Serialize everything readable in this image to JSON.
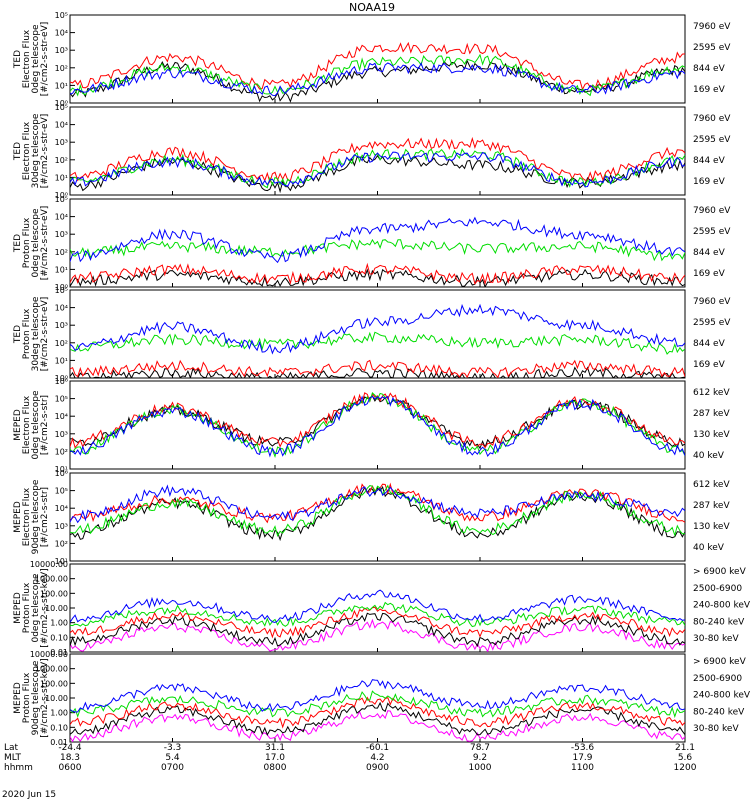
{
  "title": "NOAA19",
  "date": "2020 Jun 15",
  "colors": {
    "black": "#000000",
    "red": "#ff0000",
    "green": "#00dd00",
    "blue": "#0000ff",
    "magenta": "#ff00ff"
  },
  "x_rows": [
    {
      "label": "Lat",
      "values": [
        "-24.4",
        "-3.3",
        "31.1",
        "-60.1",
        "78.7",
        "-53.6",
        "21.1"
      ]
    },
    {
      "label": "MLT",
      "values": [
        "18.3",
        "5.4",
        "17.0",
        "4.2",
        "9.2",
        "17.9",
        "5.6"
      ]
    },
    {
      "label": "hhmm",
      "values": [
        "0600",
        "0700",
        "0800",
        "0900",
        "1000",
        "1100",
        "1200"
      ]
    }
  ],
  "chart_data": [
    {
      "type": "line",
      "scale": "log",
      "ylabel_lines": [
        "TED",
        "Electron Flux",
        "0deg telescope",
        "[#/cm2-s-str-eV]"
      ],
      "yticks": [
        "10⁰",
        "10¹",
        "10²",
        "10³",
        "10⁴",
        "10⁵"
      ],
      "ylim": [
        1,
        100000
      ],
      "legend": [
        {
          "label": "7960 eV",
          "color": "#000000"
        },
        {
          "label": "2595 eV",
          "color": "#ff0000"
        },
        {
          "label": "844 eV",
          "color": "#00dd00"
        },
        {
          "label": "169 eV",
          "color": "#0000ff"
        }
      ],
      "x": [
        "0600",
        "0700",
        "0800",
        "0900",
        "1000",
        "1100",
        "1200"
      ],
      "series": [
        {
          "name": "7960 eV",
          "values": [
            3,
            120,
            2,
            60,
            150,
            5,
            80
          ]
        },
        {
          "name": "2595 eV",
          "values": [
            10,
            400,
            10,
            1500,
            1200,
            10,
            400
          ]
        },
        {
          "name": "844 eV",
          "values": [
            5,
            100,
            5,
            200,
            300,
            5,
            100
          ]
        },
        {
          "name": "169 eV",
          "values": [
            5,
            50,
            5,
            100,
            100,
            5,
            50
          ]
        }
      ]
    },
    {
      "type": "line",
      "scale": "log",
      "ylabel_lines": [
        "TED",
        "Electron Flux",
        "30deg telescope",
        "[#/cm2-s-str-eV]"
      ],
      "yticks": [
        "10⁰",
        "10¹",
        "10²",
        "10³",
        "10⁴",
        "10⁵"
      ],
      "ylim": [
        1,
        100000
      ],
      "legend": [
        {
          "label": "7960 eV",
          "color": "#000000"
        },
        {
          "label": "2595 eV",
          "color": "#ff0000"
        },
        {
          "label": "844 eV",
          "color": "#00dd00"
        },
        {
          "label": "169 eV",
          "color": "#0000ff"
        }
      ],
      "x": [
        "0600",
        "0700",
        "0800",
        "0900",
        "1000",
        "1100",
        "1200"
      ],
      "series": [
        {
          "name": "7960 eV",
          "values": [
            3,
            80,
            3,
            100,
            50,
            5,
            50
          ]
        },
        {
          "name": "2595 eV",
          "values": [
            10,
            300,
            10,
            800,
            800,
            10,
            300
          ]
        },
        {
          "name": "844 eV",
          "values": [
            5,
            100,
            5,
            200,
            200,
            5,
            100
          ]
        },
        {
          "name": "169 eV",
          "values": [
            5,
            80,
            5,
            150,
            150,
            5,
            80
          ]
        }
      ]
    },
    {
      "type": "line",
      "scale": "log",
      "ylabel_lines": [
        "TED",
        "Proton Flux",
        "0deg telescope",
        "[#/cm2-s-str-eV]"
      ],
      "yticks": [
        "10⁰",
        "10¹",
        "10²",
        "10³",
        "10⁴",
        "10⁵"
      ],
      "ylim": [
        1,
        100000
      ],
      "legend": [
        {
          "label": "7960 eV",
          "color": "#000000"
        },
        {
          "label": "2595 eV",
          "color": "#ff0000"
        },
        {
          "label": "844 eV",
          "color": "#00dd00"
        },
        {
          "label": "169 eV",
          "color": "#0000ff"
        }
      ],
      "x": [
        "0600",
        "0700",
        "0800",
        "0900",
        "1000",
        "1100",
        "1200"
      ],
      "series": [
        {
          "name": "7960 eV",
          "values": [
            2,
            5,
            2,
            5,
            2,
            5,
            2
          ]
        },
        {
          "name": "2595 eV",
          "values": [
            3,
            10,
            3,
            10,
            3,
            10,
            3
          ]
        },
        {
          "name": "844 eV",
          "values": [
            80,
            200,
            100,
            300,
            150,
            200,
            50
          ]
        },
        {
          "name": "169 eV",
          "values": [
            50,
            1000,
            50,
            2000,
            5000,
            1000,
            100
          ]
        }
      ]
    },
    {
      "type": "line",
      "scale": "log",
      "ylabel_lines": [
        "TED",
        "Proton Flux",
        "30deg telescope",
        "[#/cm2-s-str-eV]"
      ],
      "yticks": [
        "10⁰",
        "10¹",
        "10²",
        "10³",
        "10⁴",
        "10⁵"
      ],
      "ylim": [
        1,
        100000
      ],
      "legend": [
        {
          "label": "7960 eV",
          "color": "#000000"
        },
        {
          "label": "2595 eV",
          "color": "#ff0000"
        },
        {
          "label": "844 eV",
          "color": "#00dd00"
        },
        {
          "label": "169 eV",
          "color": "#0000ff"
        }
      ],
      "x": [
        "0600",
        "0700",
        "0800",
        "0900",
        "1000",
        "1100",
        "1200"
      ],
      "series": [
        {
          "name": "7960 eV",
          "values": [
            1,
            2,
            1,
            2,
            1,
            2,
            1
          ]
        },
        {
          "name": "2595 eV",
          "values": [
            2,
            5,
            2,
            5,
            2,
            5,
            2
          ]
        },
        {
          "name": "844 eV",
          "values": [
            50,
            150,
            80,
            200,
            100,
            150,
            40
          ]
        },
        {
          "name": "169 eV",
          "values": [
            50,
            800,
            50,
            1500,
            8000,
            1000,
            100
          ]
        }
      ]
    },
    {
      "type": "line",
      "scale": "log",
      "ylabel_lines": [
        "MEPED",
        "Electron Flux",
        "0deg telescope",
        "[#/cm2-s-str]"
      ],
      "yticks": [
        "10¹",
        "10²",
        "10³",
        "10⁴",
        "10⁵",
        "10⁶"
      ],
      "ylim": [
        10,
        1000000
      ],
      "legend": [
        {
          "label": "612 keV",
          "color": "#000000"
        },
        {
          "label": "287 keV",
          "color": "#ff0000"
        },
        {
          "label": "130 keV",
          "color": "#00dd00"
        },
        {
          "label": "40 keV",
          "color": "#0000ff"
        }
      ],
      "x": [
        "0600",
        "0700",
        "0800",
        "0900",
        "1000",
        "1100",
        "1200"
      ],
      "series": [
        {
          "name": "612 keV",
          "values": [
            300,
            20000,
            300,
            100000,
            300,
            50000,
            300
          ]
        },
        {
          "name": "287 keV",
          "values": [
            300,
            30000,
            300,
            150000,
            300,
            80000,
            300
          ]
        },
        {
          "name": "130 keV",
          "values": [
            100,
            25000,
            100,
            120000,
            100,
            60000,
            100
          ]
        },
        {
          "name": "40 keV",
          "values": [
            100,
            20000,
            100,
            100000,
            100,
            50000,
            100
          ]
        }
      ]
    },
    {
      "type": "line",
      "scale": "log",
      "ylabel_lines": [
        "MEPED",
        "Electron Flux",
        "90deg telescope",
        "[#/cm2-s-str]"
      ],
      "yticks": [
        "10¹",
        "10²",
        "10³",
        "10⁴",
        "10⁵",
        "10⁶"
      ],
      "ylim": [
        10,
        1000000
      ],
      "legend": [
        {
          "label": "612 keV",
          "color": "#000000"
        },
        {
          "label": "287 keV",
          "color": "#ff0000"
        },
        {
          "label": "130 keV",
          "color": "#00dd00"
        },
        {
          "label": "40 keV",
          "color": "#0000ff"
        }
      ],
      "x": [
        "0600",
        "0700",
        "0800",
        "0900",
        "1000",
        "1100",
        "1200"
      ],
      "series": [
        {
          "name": "612 keV",
          "values": [
            300,
            20000,
            300,
            100000,
            300,
            50000,
            300
          ]
        },
        {
          "name": "287 keV",
          "values": [
            3000,
            30000,
            3000,
            150000,
            3000,
            80000,
            3000
          ]
        },
        {
          "name": "130 keV",
          "values": [
            500,
            20000,
            500,
            120000,
            500,
            60000,
            500
          ]
        },
        {
          "name": "40 keV",
          "values": [
            3000,
            100000,
            3000,
            100000,
            5000,
            50000,
            5000
          ]
        }
      ]
    },
    {
      "type": "line",
      "scale": "log",
      "ylabel_lines": [
        "MEPED",
        "Proton Flux",
        "0deg telescope",
        "[#/cm2-s-str-keV]"
      ],
      "yticks": [
        "0.01",
        "0.10",
        "1.00",
        "10.00",
        "100.00",
        "1000.00",
        "10000.00"
      ],
      "ylim": [
        0.01,
        10000
      ],
      "legend": [
        {
          "label": "> 6900 keV",
          "color": "#ff00ff"
        },
        {
          "label": "2500-6900",
          "color": "#000000"
        },
        {
          "label": "240-800 keV",
          "color": "#ff0000"
        },
        {
          "label": "80-240 keV",
          "color": "#00dd00"
        },
        {
          "label": "30-80 keV",
          "color": "#0000ff"
        }
      ],
      "x": [
        "0600",
        "0700",
        "0800",
        "0900",
        "1000",
        "1100",
        "1200"
      ],
      "series": [
        {
          "name": "> 6900 keV",
          "values": [
            0.02,
            0.5,
            0.02,
            0.8,
            0.02,
            0.5,
            0.02
          ]
        },
        {
          "name": "2500-6900",
          "values": [
            0.05,
            1.5,
            0.05,
            2.5,
            0.05,
            1.5,
            0.05
          ]
        },
        {
          "name": "240-800 keV",
          "values": [
            0.2,
            3,
            0.2,
            6,
            0.2,
            3,
            0.2
          ]
        },
        {
          "name": "80-240 keV",
          "values": [
            1,
            8,
            1,
            15,
            1,
            8,
            1
          ]
        },
        {
          "name": "30-80 keV",
          "values": [
            2,
            30,
            2,
            100,
            2,
            40,
            2
          ]
        }
      ]
    },
    {
      "type": "line",
      "scale": "log",
      "ylabel_lines": [
        "MEPED",
        "Proton Flux",
        "90deg telescope",
        "[#/cm2-s-str-keV]"
      ],
      "yticks": [
        "0.01",
        "0.10",
        "1.00",
        "10.00",
        "100.00",
        "1000.00",
        "10000.00"
      ],
      "ylim": [
        0.01,
        10000
      ],
      "legend": [
        {
          "label": "> 6900 keV",
          "color": "#ff00ff"
        },
        {
          "label": "2500-6900",
          "color": "#000000"
        },
        {
          "label": "240-800 keV",
          "color": "#ff0000"
        },
        {
          "label": "80-240 keV",
          "color": "#00dd00"
        },
        {
          "label": "30-80 keV",
          "color": "#0000ff"
        }
      ],
      "x": [
        "0600",
        "0700",
        "0800",
        "0900",
        "1000",
        "1100",
        "1200"
      ],
      "series": [
        {
          "name": "> 6900 keV",
          "values": [
            0.02,
            0.5,
            0.02,
            0.8,
            0.02,
            0.5,
            0.02
          ]
        },
        {
          "name": "2500-6900",
          "values": [
            0.05,
            1.5,
            0.05,
            2.5,
            0.05,
            1.5,
            0.05
          ]
        },
        {
          "name": "240-800 keV",
          "values": [
            0.2,
            3,
            0.2,
            6,
            0.2,
            3,
            0.2
          ]
        },
        {
          "name": "80-240 keV",
          "values": [
            1,
            8,
            1,
            15,
            1,
            8,
            1
          ]
        },
        {
          "name": "30-80 keV",
          "values": [
            2,
            50,
            2,
            100,
            3,
            50,
            3
          ]
        }
      ]
    }
  ]
}
